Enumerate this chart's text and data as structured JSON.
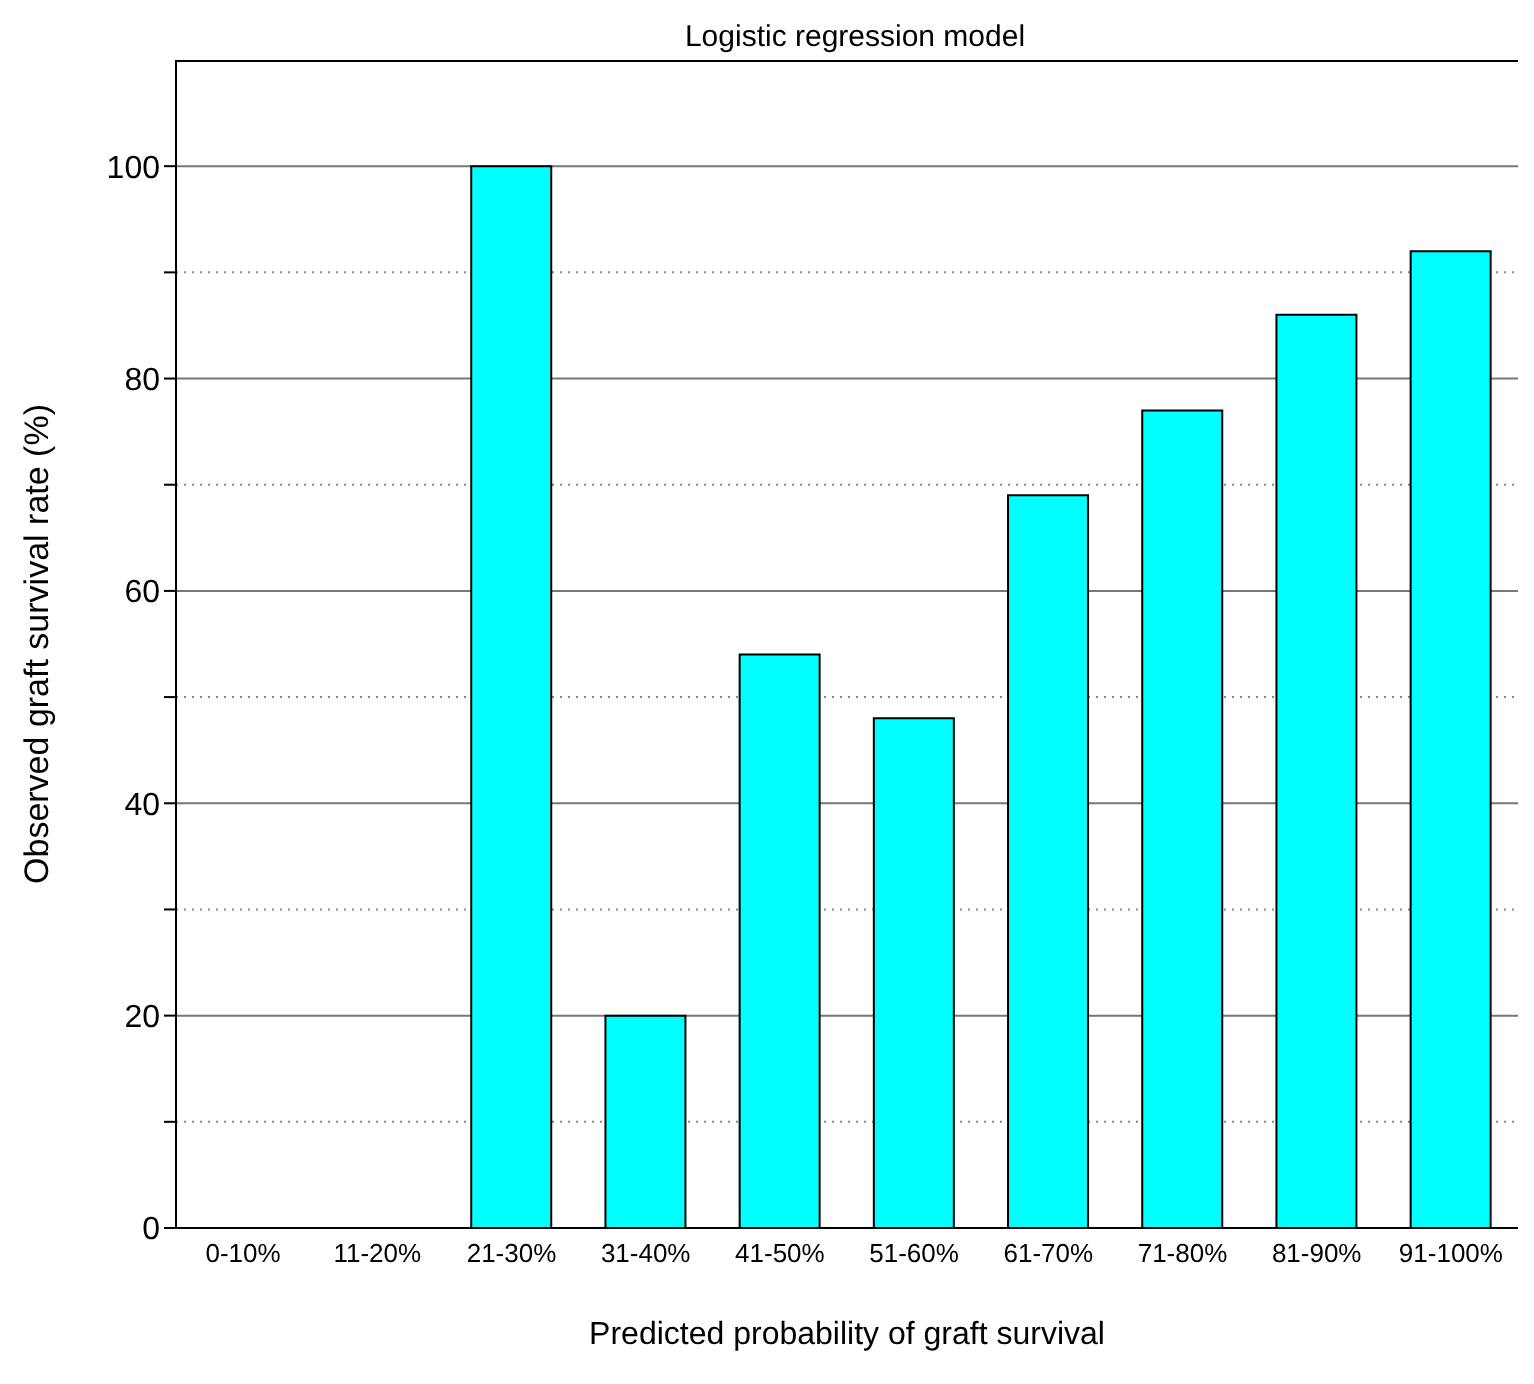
{
  "chart_data": {
    "type": "bar",
    "title": "Logistic regression model",
    "xlabel": "Predicted probability of graft survival",
    "ylabel": "Observed graft survival rate  (%)",
    "categories": [
      "0-10%",
      "11-20%",
      "21-30%",
      "31-40%",
      "41-50%",
      "51-60%",
      "61-70%",
      "71-80%",
      "81-90%",
      "91-100%"
    ],
    "values": [
      0,
      0,
      100,
      20,
      54,
      48,
      69,
      77,
      86,
      92
    ],
    "color": "#00ffff",
    "ylim": [
      0,
      110
    ],
    "yticks": [
      0,
      {
        "value": 10,
        "label": null
      },
      20,
      {
        "value": 30,
        "label": null
      },
      40,
      {
        "value": 50,
        "label": null
      },
      60,
      {
        "value": 70,
        "label": null
      },
      80,
      {
        "value": 90,
        "label": null
      },
      100
    ],
    "grid": "y"
  }
}
